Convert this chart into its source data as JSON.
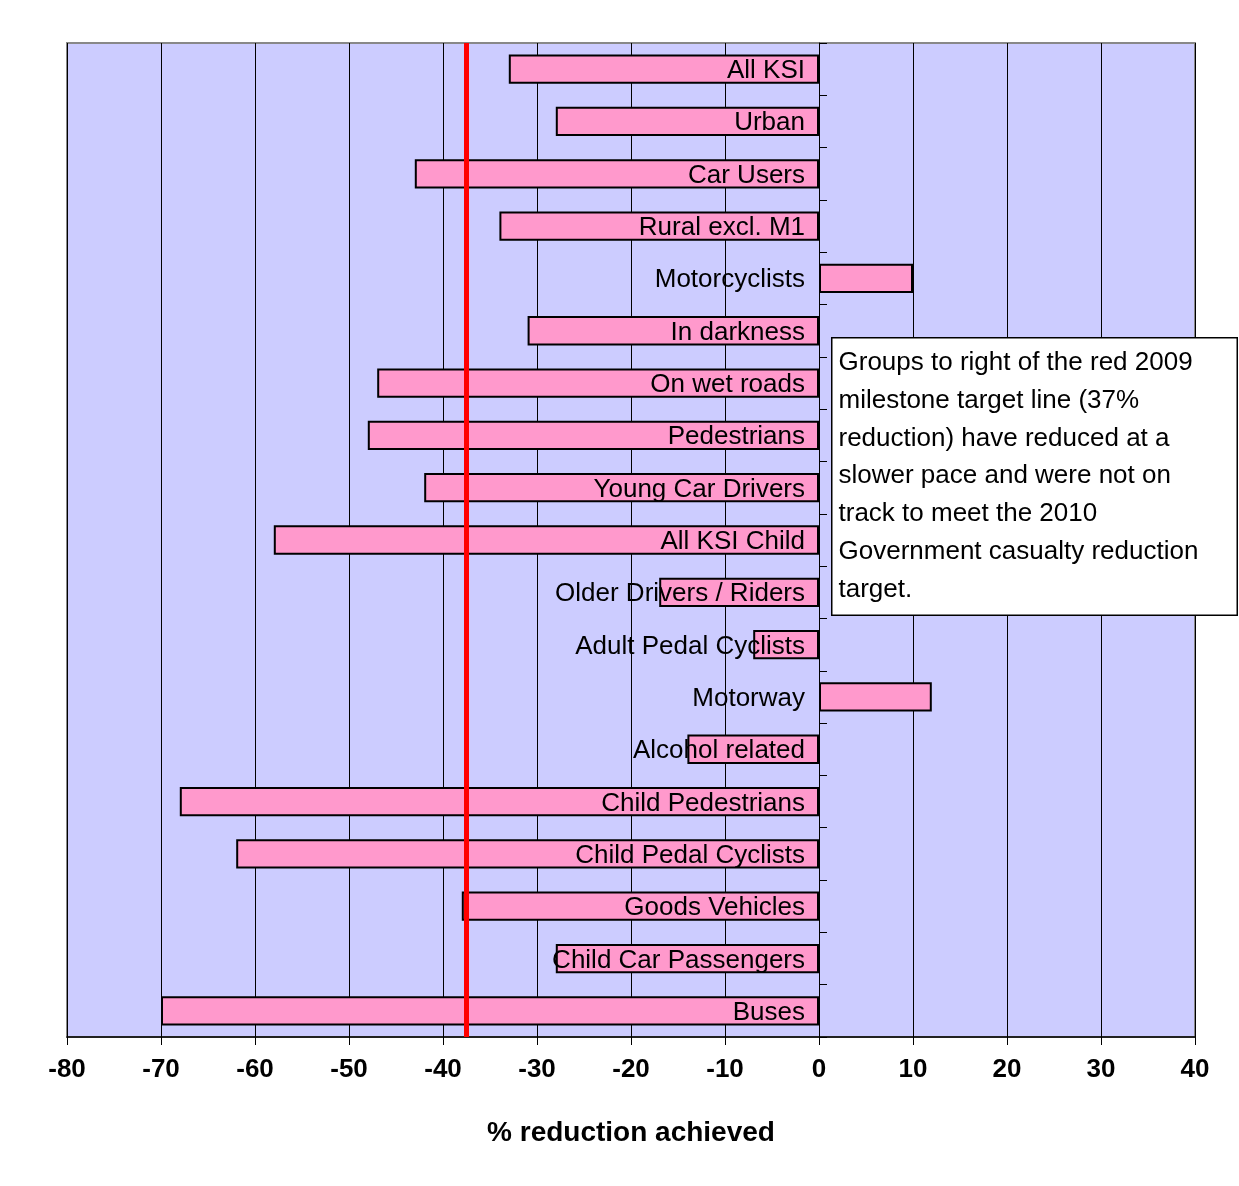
{
  "chart_data": {
    "type": "bar",
    "orientation": "horizontal",
    "xlabel": "% reduction achieved",
    "categories": [
      "All KSI",
      "Urban",
      "Car Users",
      "Rural excl. M1",
      "Motorcyclists",
      "In darkness",
      "On wet roads",
      "Pedestrians",
      "Young Car Drivers",
      "All KSI Child",
      "Older Drivers / Riders",
      "Adult Pedal Cyclists",
      "Motorway",
      "Alcohol related",
      "Child Pedestrians",
      "Child Pedal Cyclists",
      "Goods Vehicles",
      "Child Car Passengers",
      "Buses"
    ],
    "values": [
      -33,
      -28,
      -43,
      -34,
      10,
      -31,
      -47,
      -48,
      -42,
      -58,
      -17,
      -7,
      12,
      -14,
      -68,
      -62,
      -38,
      -28,
      -70
    ],
    "color": "#ff99cc",
    "xlim": [
      -80,
      40
    ],
    "xticks": [
      -80,
      -70,
      -60,
      -50,
      -40,
      -30,
      -20,
      -10,
      0,
      10,
      20,
      30,
      40
    ],
    "grid": "x",
    "ref_lines": [
      {
        "axis": "x",
        "value": -37.5,
        "color": "#ff0000"
      }
    ],
    "annotations": [
      "Groups to right of the red 2009 milestone target line (37% reduction) have reduced at a  slower pace and were not on track to meet the 2010 Government casualty reduction target."
    ]
  }
}
